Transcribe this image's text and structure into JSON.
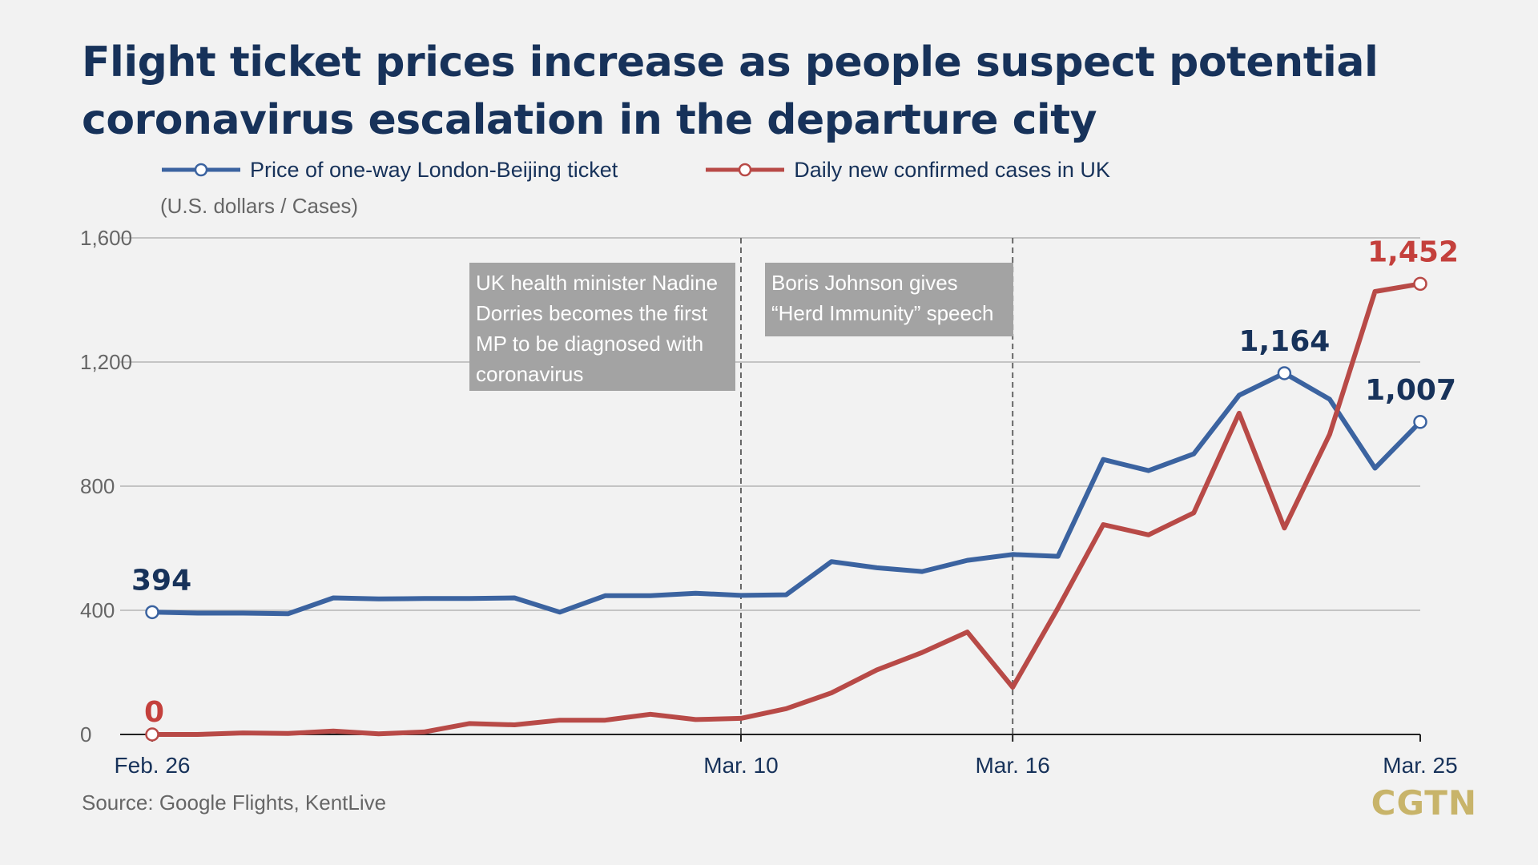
{
  "chart_data": {
    "type": "line",
    "title": "Flight ticket prices increase as people suspect potential coronavirus escalation in the departure city",
    "unit_label": "(U.S. dollars / Cases)",
    "source": "Source: Google Flights, KentLive",
    "logo": "CGTN",
    "legend_position": "top",
    "grid": true,
    "ylim": [
      0,
      1600
    ],
    "yticks": [
      "1,600",
      "1,200",
      "800",
      "400",
      "0"
    ],
    "ytick_values": [
      1600,
      1200,
      800,
      400,
      0
    ],
    "x": [
      "Feb. 26",
      "Feb. 27",
      "Feb. 28",
      "Feb. 29",
      "Mar. 1",
      "Mar. 2",
      "Mar. 3",
      "Mar. 4",
      "Mar. 5",
      "Mar. 6",
      "Mar. 7",
      "Mar. 8",
      "Mar. 9",
      "Mar. 10",
      "Mar. 11",
      "Mar. 12",
      "Mar. 13",
      "Mar. 14",
      "Mar. 15",
      "Mar. 16",
      "Mar. 17",
      "Mar. 18",
      "Mar. 19",
      "Mar. 20",
      "Mar. 21",
      "Mar. 22",
      "Mar. 23",
      "Mar. 24",
      "Mar. 25"
    ],
    "xticks": [
      {
        "label": "Feb. 26",
        "index": 0
      },
      {
        "label": "Mar. 10",
        "index": 13
      },
      {
        "label": "Mar. 16",
        "index": 19
      },
      {
        "label": "Mar. 25",
        "index": 28
      }
    ],
    "series": [
      {
        "name": "Price of one-way London-Beijing ticket",
        "color": "#3b63a0",
        "label_color": "#17325a",
        "values": [
          394,
          391,
          391,
          389,
          440,
          437,
          438,
          438,
          440,
          394,
          447,
          447,
          455,
          448,
          450,
          557,
          537,
          525,
          561,
          580,
          574,
          886,
          850,
          904,
          1093,
          1164,
          1080,
          858,
          1007
        ],
        "point_labels": [
          {
            "index": 0,
            "text": "394"
          },
          {
            "index": 25,
            "text": "1,164"
          },
          {
            "index": 28,
            "text": "1,007"
          }
        ],
        "markers": [
          0,
          25,
          28
        ]
      },
      {
        "name": "Daily new confirmed cases in UK",
        "color": "#b84a47",
        "label_color": "#c4403c",
        "values": [
          0,
          0,
          5,
          3,
          11,
          2,
          8,
          35,
          31,
          46,
          46,
          65,
          48,
          52,
          83,
          134,
          208,
          264,
          330,
          152,
          407,
          676,
          643,
          714,
          1035,
          665,
          967,
          1427,
          1452
        ],
        "point_labels": [
          {
            "index": 0,
            "text": "0"
          },
          {
            "index": 28,
            "text": "1,452"
          }
        ],
        "markers": [
          0,
          28
        ]
      }
    ],
    "annotations": [
      {
        "x_index": 13,
        "text": "UK health minister Nadine Dorries becomes the first MP to be diagnosed with coronavirus"
      },
      {
        "x_index": 19,
        "text": "Boris Johnson gives “Herd Immunity” speech"
      }
    ]
  }
}
